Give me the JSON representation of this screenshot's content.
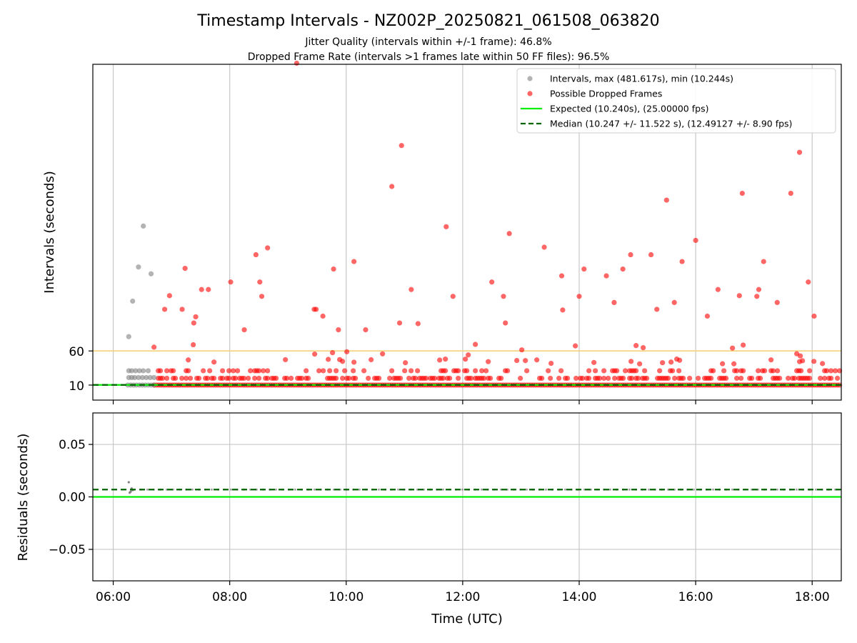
{
  "title": "Timestamp Intervals - NZ002P_20250821_061508_063820",
  "subtitle_1": "Jitter Quality (intervals within +/-1 frame): 46.8%",
  "subtitle_2": "Dropped Frame Rate (intervals >1 frames late within 50 FF files): 96.5%",
  "colors": {
    "intervals": "#808080",
    "dropped": "#ff0000",
    "expected": "#00ee00",
    "median": "#006400",
    "threshold": "#f5d27a",
    "grid": "#c8c8c8"
  },
  "chart_data": [
    {
      "type": "scatter",
      "ylabel": "Intervals (seconds)",
      "xlim": [
        "05:39",
        "18:30"
      ],
      "y_ticks": [
        "10",
        "60"
      ],
      "y_tick_values": [
        10,
        60
      ],
      "ylim": [
        -12,
        480
      ],
      "grid": "vertical",
      "legend_position": "top-right",
      "expected_interval": 10.24,
      "median_interval": 10.247,
      "threshold_line": 60,
      "legend": [
        {
          "label": "Intervals, max (481.617s), min (10.244s)",
          "kind": "gray-dot"
        },
        {
          "label": "Possible Dropped Frames",
          "kind": "red-dot"
        },
        {
          "label": "Expected (10.240s), (25.00000 fps)",
          "kind": "green-line"
        },
        {
          "label": "Median (10.247 +/- 11.522 s), (12.49127 +/- 8.90 fps)",
          "kind": "dashed-line"
        }
      ],
      "series": [
        {
          "name": "Intervals, max (481.617s), min (10.244s)",
          "points": [
            [
              "06:16",
              81
            ],
            [
              "06:20",
              133
            ],
            [
              "06:26",
              183
            ],
            [
              "06:31",
              243
            ],
            [
              "06:39",
              173
            ],
            [
              "06:16",
              31
            ],
            [
              "06:19",
              31
            ],
            [
              "06:23",
              31
            ],
            [
              "06:27",
              31
            ],
            [
              "06:31",
              31
            ],
            [
              "06:36",
              31
            ],
            [
              "06:16",
              21
            ],
            [
              "06:19",
              21
            ],
            [
              "06:22",
              21
            ],
            [
              "06:26",
              21
            ],
            [
              "06:30",
              21
            ],
            [
              "06:34",
              21
            ],
            [
              "06:38",
              21
            ],
            [
              "06:42",
              21
            ],
            [
              "06:15",
              10
            ],
            [
              "06:18",
              10
            ],
            [
              "06:21",
              10
            ],
            [
              "06:24",
              10
            ],
            [
              "06:27",
              10
            ],
            [
              "06:30",
              10
            ],
            [
              "06:33",
              10
            ],
            [
              "06:36",
              10
            ],
            [
              "06:39",
              10
            ],
            [
              "06:42",
              10
            ]
          ]
        },
        {
          "name": "Possible Dropped Frames",
          "points": [
            [
              "09:09",
              481.6
            ],
            [
              "10:57",
              361
            ],
            [
              "10:47",
              301
            ],
            [
              "11:43",
              242
            ],
            [
              "17:47",
              351
            ],
            [
              "16:48",
              291
            ],
            [
              "17:38",
              291
            ],
            [
              "15:30",
              281
            ],
            [
              "12:48",
              232
            ],
            [
              "16:00",
              222
            ],
            [
              "13:24",
              212
            ],
            [
              "08:39",
              211
            ],
            [
              "08:27",
              201
            ],
            [
              "15:14",
              201
            ],
            [
              "14:53",
              201
            ],
            [
              "10:08",
              191
            ],
            [
              "07:14",
              181
            ],
            [
              "15:46",
              191
            ],
            [
              "17:10",
              191
            ],
            [
              "09:47",
              180
            ],
            [
              "14:05",
              180
            ],
            [
              "14:28",
              170
            ],
            [
              "13:42",
              170
            ],
            [
              "14:45",
              180
            ],
            [
              "08:01",
              161
            ],
            [
              "08:31",
              161
            ],
            [
              "12:30",
              161
            ],
            [
              "17:56",
              161
            ],
            [
              "07:31",
              150
            ],
            [
              "07:38",
              150
            ],
            [
              "16:23",
              150
            ],
            [
              "17:05",
              150
            ],
            [
              "11:07",
              150
            ],
            [
              "06:58",
              141
            ],
            [
              "07:11",
              121
            ],
            [
              "06:53",
              121
            ],
            [
              "11:50",
              140
            ],
            [
              "12:42",
              140
            ],
            [
              "14:00",
              140
            ],
            [
              "15:38",
              131
            ],
            [
              "17:24",
              131
            ],
            [
              "08:33",
              140
            ],
            [
              "09:29",
              121
            ],
            [
              "13:43",
              120
            ],
            [
              "14:36",
              131
            ],
            [
              "15:20",
              121
            ],
            [
              "16:45",
              141
            ],
            [
              "17:03",
              140
            ],
            [
              "09:27",
              121
            ],
            [
              "09:36",
              111
            ],
            [
              "10:55",
              101
            ],
            [
              "11:14",
              100
            ],
            [
              "12:44",
              101
            ],
            [
              "16:12",
              111
            ],
            [
              "18:02",
              111
            ],
            [
              "07:25",
              110
            ],
            [
              "07:23",
              101
            ],
            [
              "08:15",
              91
            ],
            [
              "09:52",
              91
            ],
            [
              "10:20",
              91
            ]
          ],
          "baseline_band": {
            "y_values": [
              10,
              20,
              31
            ],
            "x_range": [
              "06:42",
              "18:30"
            ]
          }
        }
      ]
    },
    {
      "type": "scatter",
      "xlabel": "Time (UTC)",
      "ylabel": "Residuals (seconds)",
      "x_ticks": [
        "06:00",
        "08:00",
        "10:00",
        "12:00",
        "14:00",
        "16:00",
        "18:00"
      ],
      "y_ticks": [
        "0.05",
        "0.00",
        "−0.05"
      ],
      "y_tick_values": [
        0.05,
        0.0,
        -0.05
      ],
      "ylim": [
        -0.08,
        0.08
      ],
      "grid": "both",
      "expected_residual": 0.0,
      "median_residual": 0.007,
      "series": [
        {
          "name": "Residuals",
          "points": [
            [
              "06:16",
              0.014
            ],
            [
              "06:17",
              0.004
            ],
            [
              "06:18",
              0.005
            ],
            [
              "06:19",
              0.008
            ],
            [
              "06:20",
              0.0065
            ]
          ],
          "baseline": 0.007
        }
      ]
    }
  ]
}
